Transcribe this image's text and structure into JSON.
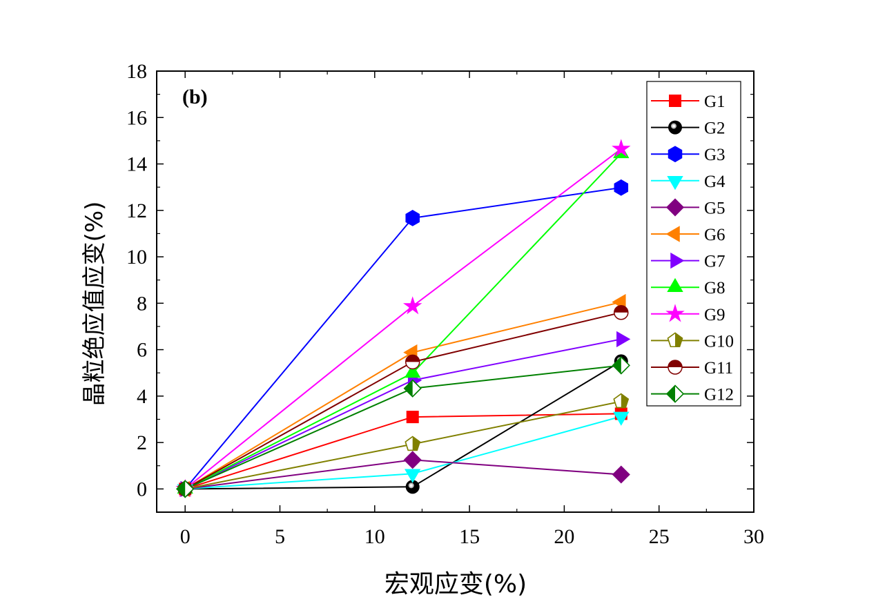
{
  "chart_data": {
    "type": "line",
    "annotation": "(b)",
    "xlabel": "宏观应变(%)",
    "ylabel": "晶粒绝应值应变(%)",
    "xlim": [
      -1.5,
      30
    ],
    "ylim": [
      -1,
      18
    ],
    "xticks": [
      0,
      5,
      10,
      15,
      20,
      25,
      30
    ],
    "yticks": [
      0,
      2,
      4,
      6,
      8,
      10,
      12,
      14,
      16,
      18
    ],
    "grid": false,
    "legend_position": "top-right",
    "x": [
      0,
      12,
      23
    ],
    "series": [
      {
        "name": "G1",
        "color": "#ff0000",
        "marker": "square",
        "values": [
          0,
          3.1,
          3.24
        ]
      },
      {
        "name": "G2",
        "color": "#000000",
        "marker": "sphere",
        "values": [
          0,
          0.09,
          5.5
        ]
      },
      {
        "name": "G3",
        "color": "#0000ff",
        "marker": "hexagon",
        "values": [
          0,
          11.67,
          12.98
        ]
      },
      {
        "name": "G4",
        "color": "#00ffff",
        "marker": "triangle-down",
        "values": [
          0,
          0.66,
          3.12
        ]
      },
      {
        "name": "G5",
        "color": "#800080",
        "marker": "diamond",
        "values": [
          0,
          1.25,
          0.62
        ]
      },
      {
        "name": "G6",
        "color": "#ff8000",
        "marker": "triangle-left",
        "values": [
          0,
          5.88,
          8.05
        ]
      },
      {
        "name": "G7",
        "color": "#8000ff",
        "marker": "triangle-right",
        "values": [
          0,
          4.68,
          6.45
        ]
      },
      {
        "name": "G8",
        "color": "#00ff00",
        "marker": "triangle-up",
        "values": [
          0,
          4.99,
          14.45
        ]
      },
      {
        "name": "G9",
        "color": "#ff00ff",
        "marker": "star",
        "values": [
          0,
          7.87,
          14.65
        ]
      },
      {
        "name": "G10",
        "color": "#808000",
        "marker": "pentagon-half",
        "values": [
          0,
          1.93,
          3.77
        ]
      },
      {
        "name": "G11",
        "color": "#800000",
        "marker": "circle-half",
        "values": [
          0,
          5.47,
          7.6
        ]
      },
      {
        "name": "G12",
        "color": "#008000",
        "marker": "diamond-half",
        "values": [
          0,
          4.33,
          5.32
        ]
      }
    ]
  }
}
